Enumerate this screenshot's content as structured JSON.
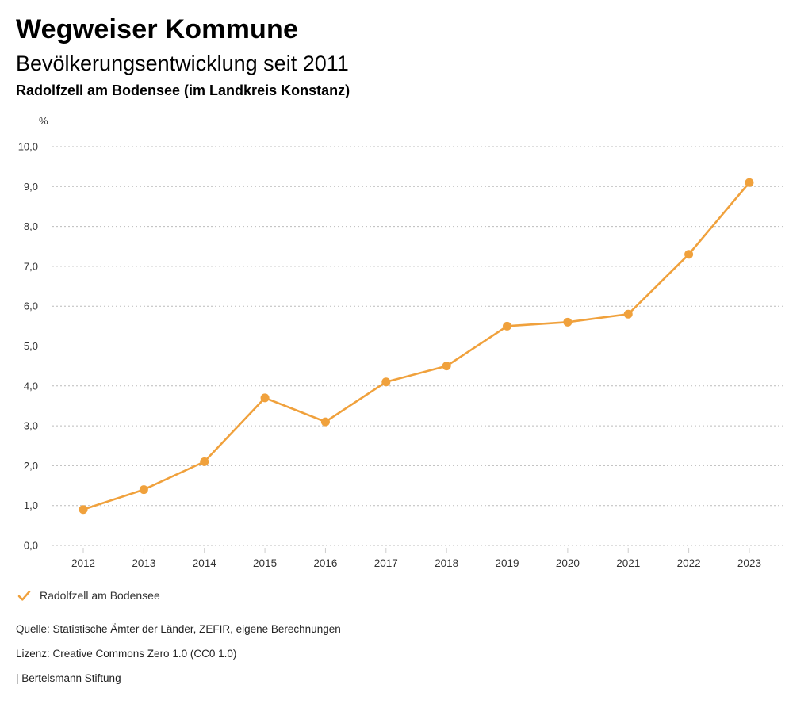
{
  "header": {
    "title": "Wegweiser Kommune",
    "subtitle": "Bevölkerungsentwicklung seit 2011",
    "region": "Radolfzell am Bodensee (im Landkreis Konstanz)"
  },
  "chart_data": {
    "type": "line",
    "unit_label": "%",
    "categories": [
      "2012",
      "2013",
      "2014",
      "2015",
      "2016",
      "2017",
      "2018",
      "2019",
      "2020",
      "2021",
      "2022",
      "2023"
    ],
    "series": [
      {
        "name": "Radolfzell am Bodensee",
        "values": [
          0.9,
          1.4,
          2.1,
          3.7,
          3.1,
          4.1,
          4.5,
          5.5,
          5.6,
          5.8,
          7.3,
          9.1
        ],
        "color": "#F0A13C"
      }
    ],
    "ylim": [
      0,
      10
    ],
    "ytick_step": 1,
    "ytick_labels": [
      "0,0",
      "1,0",
      "2,0",
      "3,0",
      "4,0",
      "5,0",
      "6,0",
      "7,0",
      "8,0",
      "9,0",
      "10,0"
    ],
    "grid": "dotted-horizontal",
    "legend_position": "bottom-left"
  },
  "legend": {
    "label": "Radolfzell am Bodensee"
  },
  "footer": {
    "source": "Quelle: Statistische Ämter der Länder, ZEFIR, eigene Berechnungen",
    "license": "Lizenz: Creative Commons Zero 1.0 (CC0 1.0)",
    "attribution": "| Bertelsmann Stiftung"
  },
  "colors": {
    "accent": "#F0A13C",
    "grid": "#bcbcbc",
    "tick": "#cccccc",
    "axis_text": "#333333",
    "text": "#222222"
  }
}
